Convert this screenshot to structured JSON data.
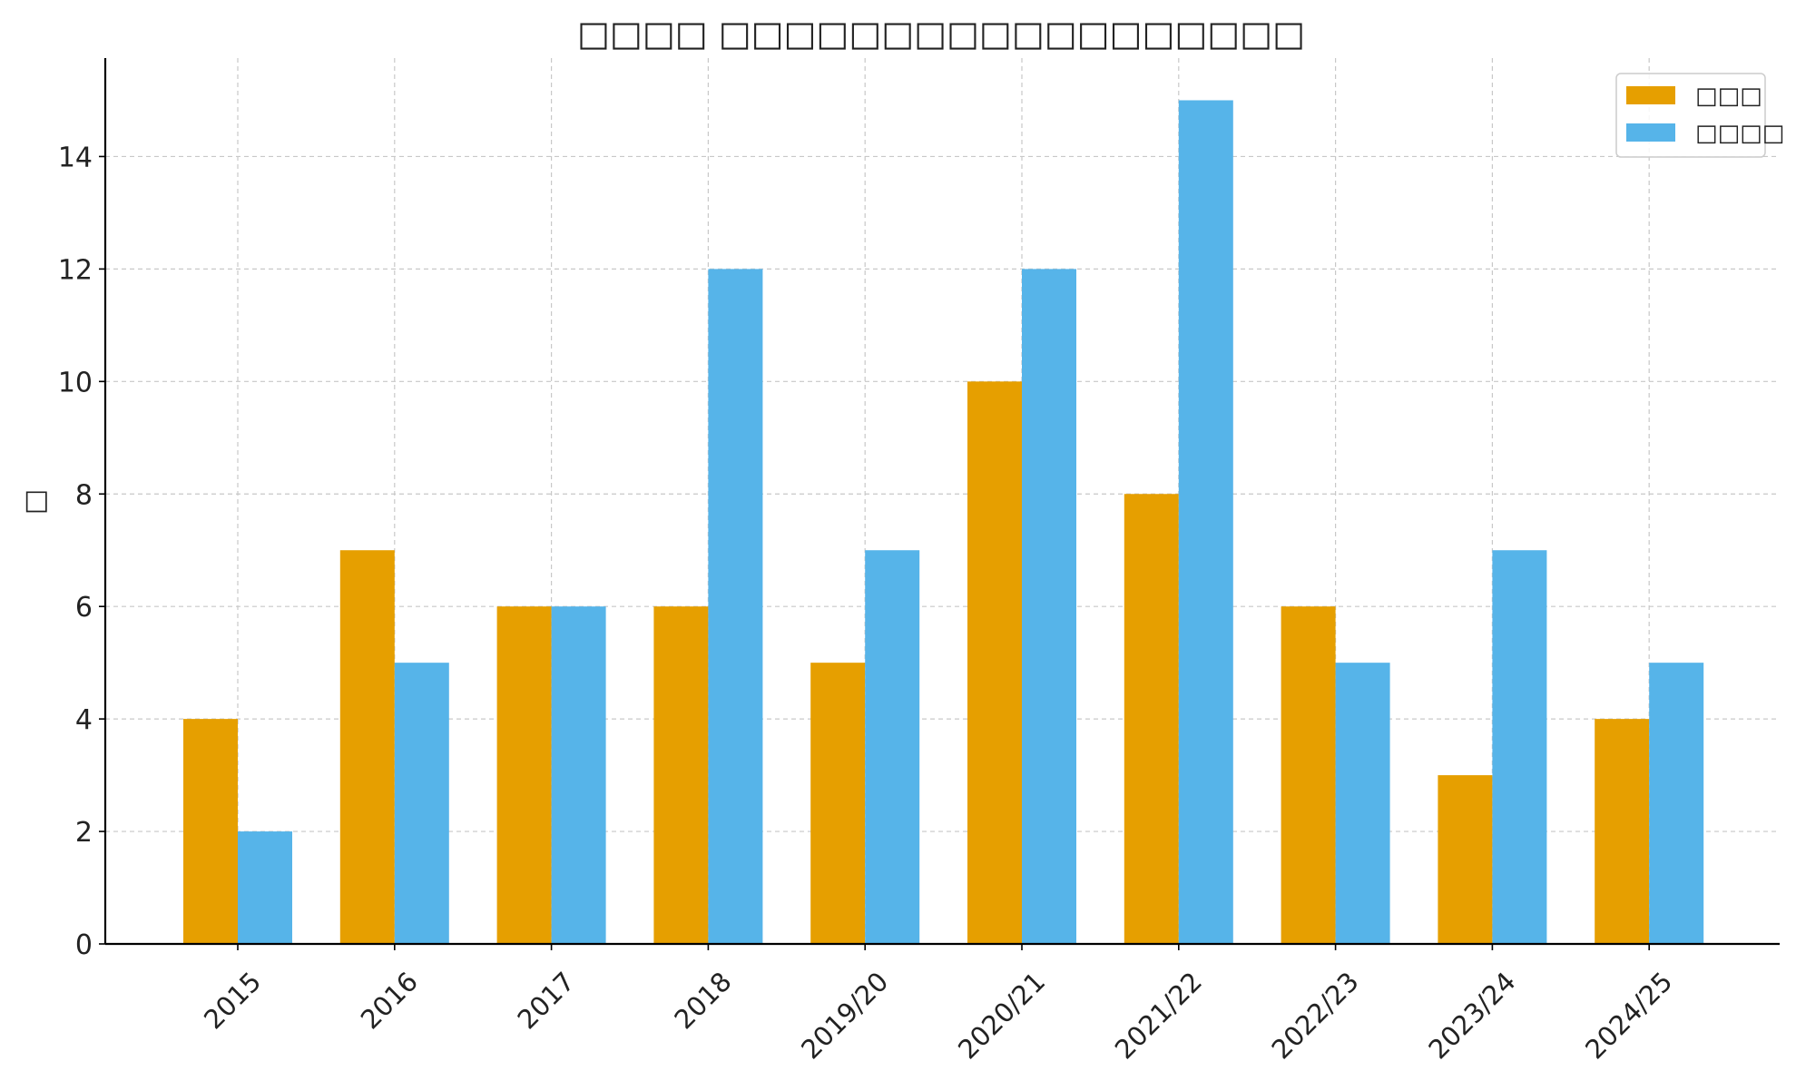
{
  "chart_data": {
    "type": "bar",
    "title": "□□□□ □□□□□□□□□□□□□□□□□□",
    "xlabel": "",
    "ylabel": "□",
    "categories": [
      "2015",
      "2016",
      "2017",
      "2018",
      "2019/20",
      "2020/21",
      "2021/22",
      "2022/23",
      "2023/24",
      "2024/25"
    ],
    "series": [
      {
        "name": "□□□",
        "color": "#E69F00",
        "values": [
          4,
          7,
          6,
          6,
          5,
          10,
          8,
          6,
          3,
          4
        ]
      },
      {
        "name": "□□□□",
        "color": "#56B4E9",
        "values": [
          2,
          5,
          6,
          12,
          7,
          12,
          15,
          5,
          7,
          5
        ]
      }
    ],
    "ylim": [
      0,
      15.75
    ],
    "yticks": [
      0,
      2,
      4,
      6,
      8,
      10,
      12,
      14
    ],
    "grid": true,
    "legend_position": "top-right"
  }
}
